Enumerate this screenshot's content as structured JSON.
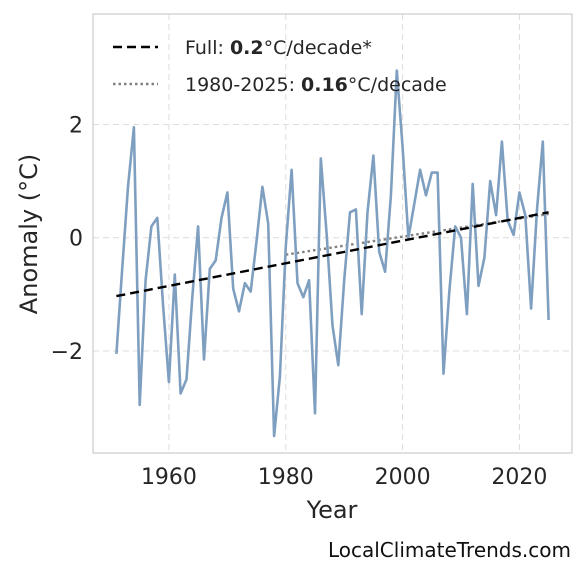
{
  "chart_data": {
    "type": "line",
    "xlabel": "Year",
    "ylabel": "Anomaly (°C)",
    "xlim": [
      1947,
      2029
    ],
    "ylim": [
      -3.8,
      3.95
    ],
    "xticks": [
      1960,
      1980,
      2000,
      2020
    ],
    "yticks": [
      -2,
      0,
      2
    ],
    "ytick_labels": [
      "−2",
      "0",
      "2"
    ],
    "grid": true,
    "legend_position": "top-left",
    "x": [
      1951,
      1952,
      1953,
      1954,
      1955,
      1956,
      1957,
      1958,
      1959,
      1960,
      1961,
      1962,
      1963,
      1964,
      1965,
      1966,
      1967,
      1968,
      1969,
      1970,
      1971,
      1972,
      1973,
      1974,
      1975,
      1976,
      1977,
      1978,
      1979,
      1980,
      1981,
      1982,
      1983,
      1984,
      1985,
      1986,
      1987,
      1988,
      1989,
      1990,
      1991,
      1992,
      1993,
      1994,
      1995,
      1996,
      1997,
      1998,
      1999,
      2000,
      2001,
      2002,
      2003,
      2004,
      2005,
      2006,
      2007,
      2008,
      2009,
      2010,
      2011,
      2012,
      2013,
      2014,
      2015,
      2016,
      2017,
      2018,
      2019,
      2020,
      2021,
      2022,
      2023,
      2024,
      2025
    ],
    "series": [
      {
        "color": "#7f9fc0",
        "style": "solid",
        "values": [
          -2.05,
          -0.55,
          0.9,
          1.95,
          -2.95,
          -0.75,
          0.2,
          0.35,
          -1.2,
          -2.55,
          -0.65,
          -2.75,
          -2.5,
          -1.05,
          0.2,
          -2.15,
          -0.55,
          -0.4,
          0.35,
          0.8,
          -0.9,
          -1.3,
          -0.8,
          -0.95,
          -0.05,
          0.9,
          0.25,
          -3.5,
          -2.45,
          -0.15,
          1.2,
          -0.8,
          -1.05,
          -0.75,
          -3.1,
          1.4,
          0.05,
          -1.55,
          -2.25,
          -0.75,
          0.45,
          0.5,
          -1.35,
          0.45,
          1.45,
          -0.25,
          -0.6,
          0.75,
          2.95,
          1.6,
          0.0,
          0.6,
          1.2,
          0.75,
          1.15,
          1.15,
          -2.4,
          -0.95,
          0.2,
          0.0,
          -1.35,
          0.95,
          -0.85,
          -0.35,
          1.0,
          0.4,
          1.7,
          0.3,
          0.05,
          0.8,
          0.4,
          -1.25,
          0.5,
          1.7,
          -1.45
        ]
      },
      {
        "name": "Full: 0.2°C/decade*",
        "color": "#000000",
        "style": "dashed",
        "x": [
          1951,
          2025
        ],
        "values": [
          -1.03,
          0.45
        ]
      },
      {
        "name": "1980-2025: 0.16°C/decade",
        "color": "#808080",
        "style": "dotted",
        "x": [
          1980,
          2025
        ],
        "values": [
          -0.3,
          0.42
        ]
      }
    ],
    "legend": [
      {
        "prefix": "Full: ",
        "value": "0.2",
        "suffix": "°C/decade*"
      },
      {
        "prefix": "1980-2025: ",
        "value": "0.16",
        "suffix": "°C/decade"
      }
    ]
  },
  "watermark": "LocalClimateTrends.com"
}
